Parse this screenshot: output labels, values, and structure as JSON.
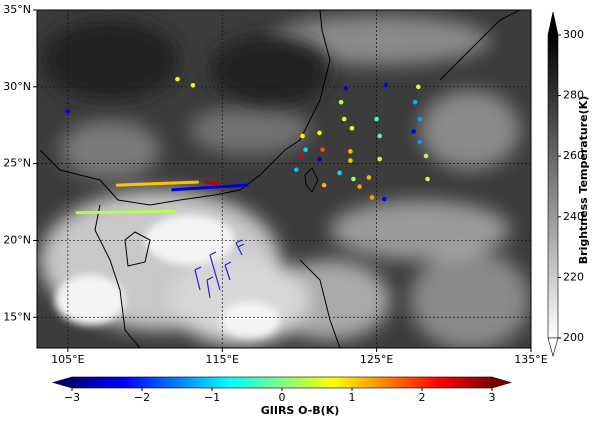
{
  "map": {
    "lon_range": [
      103,
      135
    ],
    "lat_range": [
      13,
      35
    ],
    "lon_ticks": [
      {
        "value": 105,
        "label": "105°E"
      },
      {
        "value": 115,
        "label": "115°E"
      },
      {
        "value": 125,
        "label": "125°E"
      },
      {
        "value": 135,
        "label": "135°E"
      }
    ],
    "lat_ticks": [
      {
        "value": 15,
        "label": "15°N"
      },
      {
        "value": 20,
        "label": "20°N"
      },
      {
        "value": 25,
        "label": "25°N"
      },
      {
        "value": 30,
        "label": "30°N"
      },
      {
        "value": 35,
        "label": "35°N"
      }
    ],
    "points": [
      {
        "lon": 105.0,
        "lat": 28.4,
        "value": -2.3
      },
      {
        "lon": 112.1,
        "lat": 30.5,
        "value": 0.8
      },
      {
        "lon": 113.1,
        "lat": 30.1,
        "value": 0.7
      },
      {
        "lon": 123.0,
        "lat": 29.9,
        "value": -2.5
      },
      {
        "lon": 125.6,
        "lat": 30.1,
        "value": -2.3
      },
      {
        "lon": 127.7,
        "lat": 30.0,
        "value": 0.5
      },
      {
        "lon": 122.7,
        "lat": 29.0,
        "value": 0.3
      },
      {
        "lon": 127.5,
        "lat": 29.0,
        "value": -1.2
      },
      {
        "lon": 122.9,
        "lat": 27.9,
        "value": 0.5
      },
      {
        "lon": 125.0,
        "lat": 27.9,
        "value": -0.5
      },
      {
        "lon": 127.8,
        "lat": 27.9,
        "value": -1.3
      },
      {
        "lon": 123.4,
        "lat": 27.3,
        "value": 0.7
      },
      {
        "lon": 127.4,
        "lat": 27.1,
        "value": -2.4
      },
      {
        "lon": 121.3,
        "lat": 27.0,
        "value": 0.8
      },
      {
        "lon": 120.2,
        "lat": 26.8,
        "value": 0.8
      },
      {
        "lon": 125.2,
        "lat": 26.8,
        "value": -0.3
      },
      {
        "lon": 127.8,
        "lat": 26.4,
        "value": -1.3
      },
      {
        "lon": 120.4,
        "lat": 25.9,
        "value": -1.0
      },
      {
        "lon": 121.5,
        "lat": 25.9,
        "value": 1.8
      },
      {
        "lon": 123.3,
        "lat": 25.8,
        "value": 1.2
      },
      {
        "lon": 120.1,
        "lat": 25.5,
        "value": 2.4
      },
      {
        "lon": 121.3,
        "lat": 25.3,
        "value": -2.4
      },
      {
        "lon": 123.3,
        "lat": 25.2,
        "value": 1.1
      },
      {
        "lon": 125.2,
        "lat": 25.3,
        "value": 0.4
      },
      {
        "lon": 128.2,
        "lat": 25.5,
        "value": 0.3
      },
      {
        "lon": 119.8,
        "lat": 24.6,
        "value": -1.1
      },
      {
        "lon": 122.6,
        "lat": 24.4,
        "value": -1.0
      },
      {
        "lon": 123.5,
        "lat": 24.0,
        "value": 0.1
      },
      {
        "lon": 124.5,
        "lat": 24.1,
        "value": 1.2
      },
      {
        "lon": 128.3,
        "lat": 24.0,
        "value": 0.4
      },
      {
        "lon": 121.6,
        "lat": 23.6,
        "value": 1.2
      },
      {
        "lon": 123.9,
        "lat": 23.5,
        "value": 1.3
      },
      {
        "lon": 124.7,
        "lat": 22.8,
        "value": 1.3
      },
      {
        "lon": 125.5,
        "lat": 22.7,
        "value": -2.2
      }
    ],
    "tracks": [
      {
        "lon": [
          108.2,
          113.4
        ],
        "lat": [
          23.6,
          23.8
        ],
        "value": 1.1
      },
      {
        "lon": [
          113.9,
          114.7
        ],
        "lat": [
          23.8,
          23.7
        ],
        "value": 2.6
      },
      {
        "lon": [
          111.8,
          116.6
        ],
        "lat": [
          23.3,
          23.6
        ],
        "value": -2.5
      },
      {
        "lon": [
          105.6,
          111.9
        ],
        "lat": [
          21.8,
          21.9
        ],
        "value": 0.3
      }
    ]
  },
  "colorbar_bt": {
    "label": "Brightness Temperature(K)",
    "range": [
      200,
      300
    ],
    "ticks": [
      200,
      220,
      240,
      260,
      280,
      300
    ],
    "colors": [
      "#ffffff",
      "#000000"
    ]
  },
  "colorbar_ob": {
    "label": "GIIRS O-B(K)",
    "range": [
      -3,
      3
    ],
    "ticks": [
      {
        "value": -3,
        "label": "−3"
      },
      {
        "value": -2,
        "label": "−2"
      },
      {
        "value": -1,
        "label": "−1"
      },
      0,
      1,
      2,
      3
    ],
    "colors": [
      "#00007f",
      "#0000ff",
      "#007fff",
      "#00ffff",
      "#7fff7f",
      "#ffff00",
      "#ff7f00",
      "#ff0000",
      "#7f0000"
    ]
  }
}
